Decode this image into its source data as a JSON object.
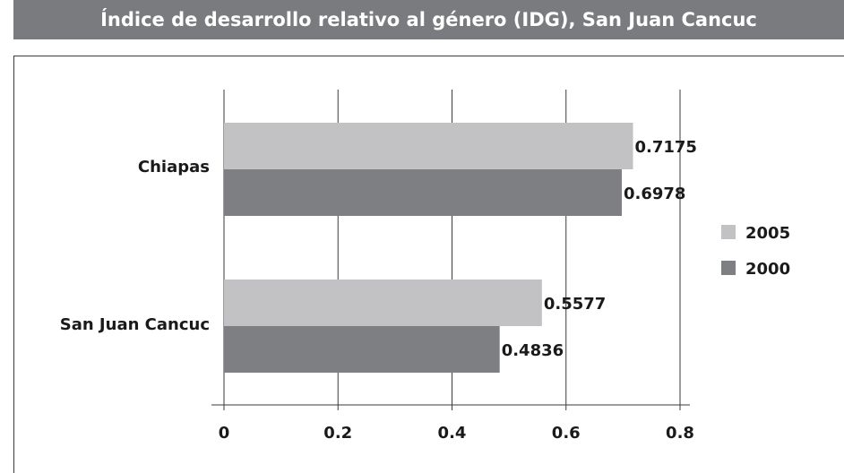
{
  "title": "Índice de desarrollo relativo al género (IDG), San Juan Cancuc",
  "chart_data": {
    "type": "bar",
    "orientation": "horizontal",
    "categories": [
      "Chiapas",
      "San Juan Cancuc"
    ],
    "series": [
      {
        "name": "2005",
        "values": [
          0.7175,
          0.5577
        ],
        "color": "#c2c2c4"
      },
      {
        "name": "2000",
        "values": [
          0.6978,
          0.4836
        ],
        "color": "#7e7f82"
      }
    ],
    "xlim": [
      0,
      0.8
    ],
    "ticks": [
      "0",
      "0.2",
      "0.4",
      "0.6",
      "0.8"
    ],
    "data_labels": [
      [
        "0.7175",
        "0.5577"
      ],
      [
        "0.6978",
        "0.4836"
      ]
    ],
    "grid": true,
    "legend": "right"
  }
}
